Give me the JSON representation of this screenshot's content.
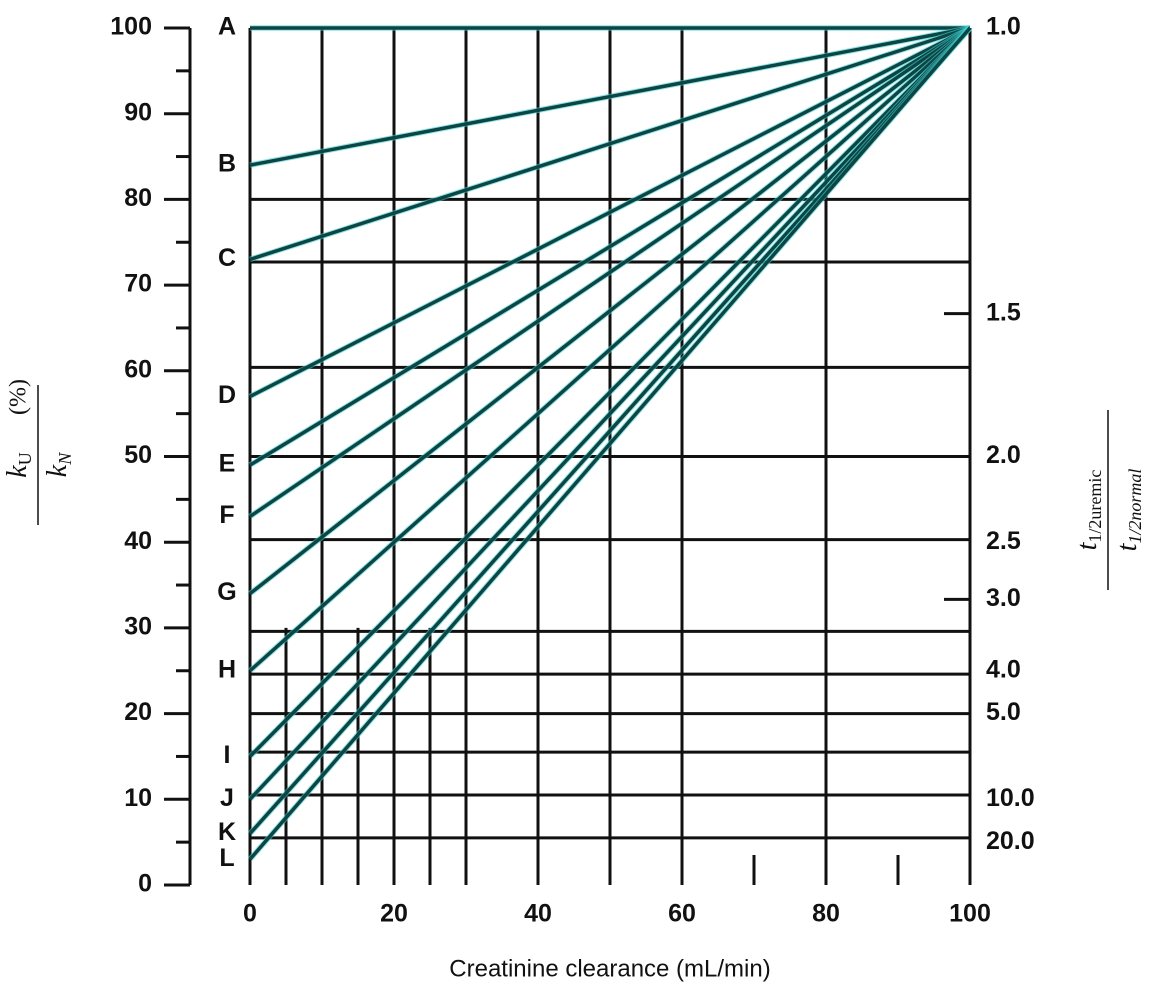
{
  "chart_data": {
    "type": "line",
    "xlabel": "Creatinine clearance (mL/min)",
    "ylabel": {
      "numerator": "k",
      "numerator_sub": "U",
      "suffix": "(%)",
      "denominator": "k",
      "denominator_sub": "N"
    },
    "y2label": {
      "numerator": "t",
      "numerator_sub": "1/2uremic",
      "denominator": "t",
      "denominator_sub": "1/2normal"
    },
    "x": [
      0,
      100
    ],
    "series": [
      {
        "name": "A",
        "values": [
          100,
          100
        ]
      },
      {
        "name": "B",
        "values": [
          84,
          100
        ]
      },
      {
        "name": "C",
        "values": [
          73,
          100
        ]
      },
      {
        "name": "D",
        "values": [
          57,
          100
        ]
      },
      {
        "name": "E",
        "values": [
          49,
          100
        ]
      },
      {
        "name": "F",
        "values": [
          43,
          100
        ]
      },
      {
        "name": "G",
        "values": [
          34,
          100
        ]
      },
      {
        "name": "H",
        "values": [
          25,
          100
        ]
      },
      {
        "name": "I",
        "values": [
          15,
          100
        ]
      },
      {
        "name": "J",
        "values": [
          10,
          100
        ]
      },
      {
        "name": "K",
        "values": [
          6,
          100
        ]
      },
      {
        "name": "L",
        "values": [
          3,
          100
        ]
      }
    ],
    "color": "#0d4444",
    "xlim": [
      0,
      100
    ],
    "xticks": [
      0,
      20,
      40,
      60,
      80,
      100
    ],
    "xgrid": [
      0,
      10,
      20,
      30,
      40,
      50,
      60,
      80,
      100
    ],
    "xgrid_lower": [
      5,
      15,
      25
    ],
    "xgrid_lower_top": 30,
    "xticks_short": [
      70,
      90
    ],
    "ylim": [
      0,
      100
    ],
    "yticks": [
      0,
      10,
      20,
      30,
      40,
      50,
      60,
      70,
      80,
      90,
      100
    ],
    "yminorticks": [
      5,
      15,
      25,
      35,
      45,
      55,
      65,
      75,
      85,
      95
    ],
    "ygrid": [
      100,
      80,
      72.7,
      60.4,
      50,
      40.3,
      29.6,
      24.6,
      20,
      15.5,
      10.5,
      5.5
    ],
    "y2scale": "reciprocal",
    "y2ticks": [
      {
        "value": 1,
        "label": "1.0"
      },
      {
        "value": 1.5,
        "label": "1.5"
      },
      {
        "value": 2,
        "label": "2.0"
      },
      {
        "value": 2.5,
        "label": "2.5"
      },
      {
        "value": 3,
        "label": "3.0"
      },
      {
        "value": 4,
        "label": "4.0"
      },
      {
        "value": 5,
        "label": "5.0"
      },
      {
        "value": 10,
        "label": "10.0"
      },
      {
        "value": 20,
        "label": "20.0"
      }
    ],
    "y2ticks_marked": [
      1.5,
      3
    ]
  }
}
